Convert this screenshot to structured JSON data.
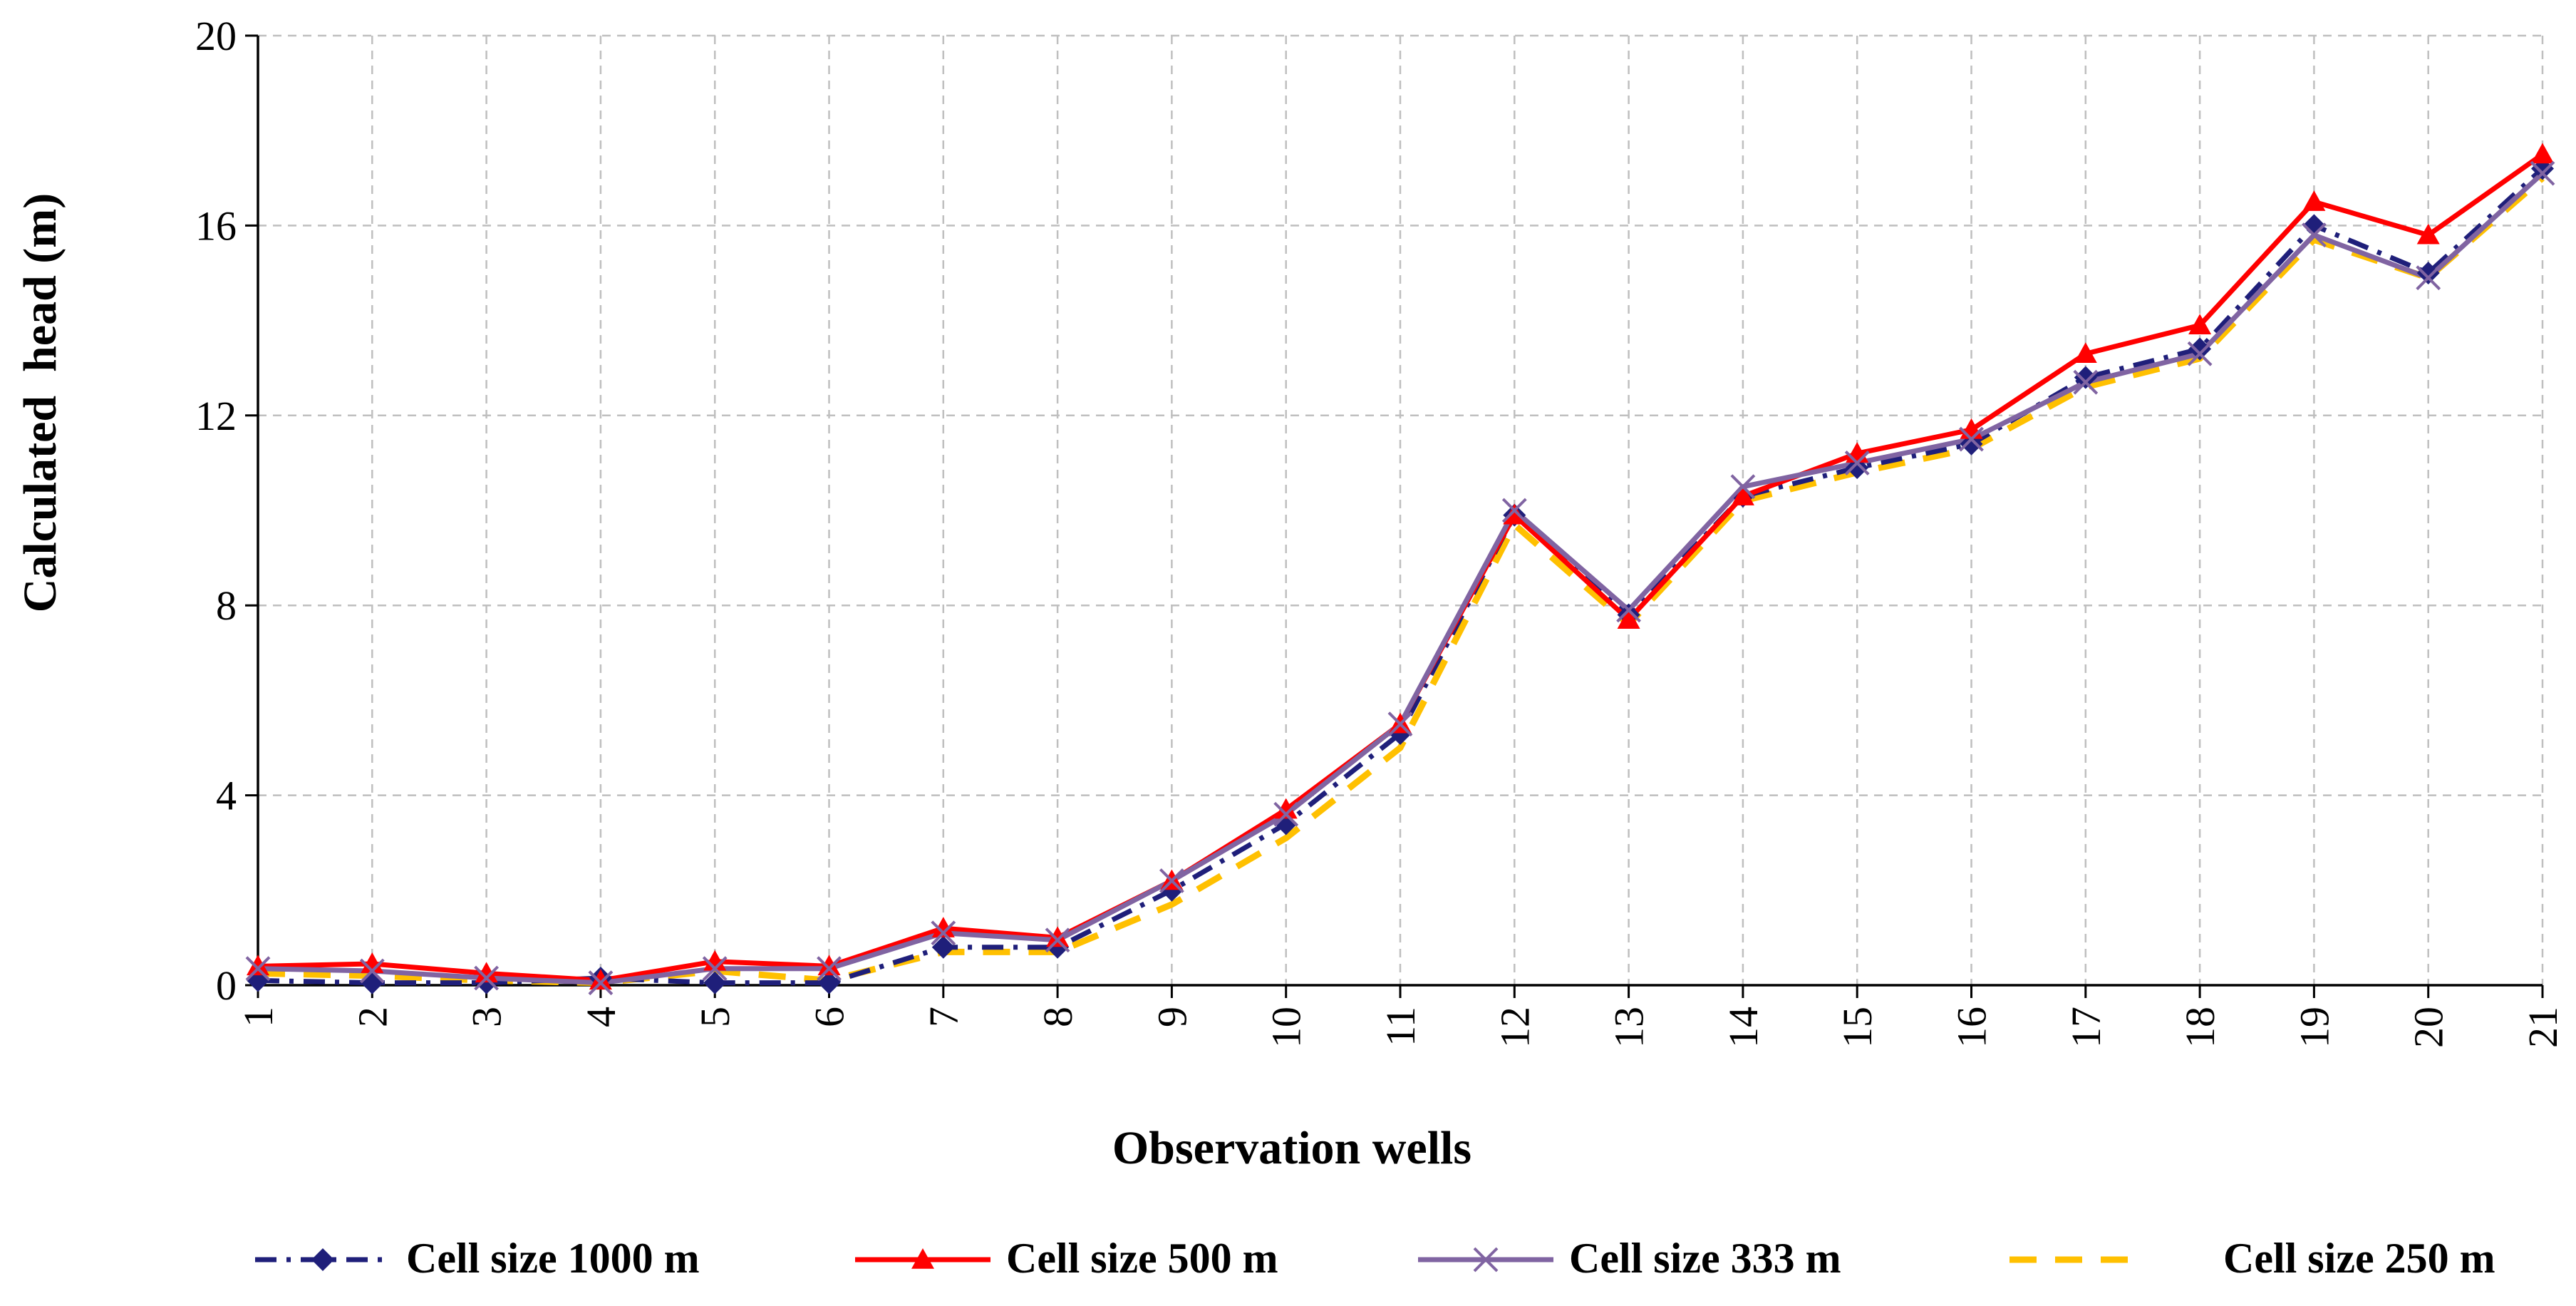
{
  "chart_data": {
    "type": "line",
    "title": "",
    "xlabel": "Observation wells",
    "ylabel": "Calculated  head (m)",
    "categories": [
      "1",
      "2",
      "3",
      "4",
      "5",
      "6",
      "7",
      "8",
      "9",
      "10",
      "11",
      "12",
      "13",
      "14",
      "15",
      "16",
      "17",
      "18",
      "19",
      "20",
      "21"
    ],
    "ylim": [
      0,
      20
    ],
    "yticks": [
      0,
      4,
      8,
      12,
      16,
      20
    ],
    "grid": true,
    "legend_position": "bottom",
    "series": [
      {
        "name": "Cell size 1000 m",
        "color": "#1f1f7a",
        "marker": "diamond",
        "dash": "dashdot",
        "values": [
          0.1,
          0.05,
          0.05,
          0.15,
          0.05,
          0.05,
          0.8,
          0.8,
          2.0,
          3.4,
          5.3,
          9.9,
          7.8,
          10.3,
          10.9,
          11.4,
          12.8,
          13.4,
          16.0,
          15.0,
          17.2
        ]
      },
      {
        "name": "Cell size 500 m",
        "color": "#ff0000",
        "marker": "triangle",
        "dash": "solid",
        "values": [
          0.4,
          0.45,
          0.25,
          0.1,
          0.5,
          0.4,
          1.2,
          1.0,
          2.2,
          3.7,
          5.5,
          9.9,
          7.7,
          10.3,
          11.2,
          11.7,
          13.3,
          13.9,
          16.5,
          15.8,
          17.5
        ]
      },
      {
        "name": "Cell size 333 m",
        "color": "#8064a2",
        "marker": "x",
        "dash": "solid",
        "values": [
          0.35,
          0.3,
          0.15,
          0.05,
          0.35,
          0.35,
          1.1,
          0.95,
          2.2,
          3.6,
          5.5,
          10.0,
          7.9,
          10.5,
          11.0,
          11.5,
          12.7,
          13.3,
          15.8,
          14.9,
          17.1
        ]
      },
      {
        "name": "Cell size 250 m",
        "color": "#ffc000",
        "marker": "none",
        "dash": "dashed",
        "values": [
          0.25,
          0.2,
          0.1,
          0.05,
          0.3,
          0.1,
          0.7,
          0.7,
          1.7,
          3.1,
          5.0,
          9.7,
          7.6,
          10.2,
          10.8,
          11.3,
          12.6,
          13.2,
          15.7,
          14.9,
          17.0
        ]
      }
    ]
  }
}
